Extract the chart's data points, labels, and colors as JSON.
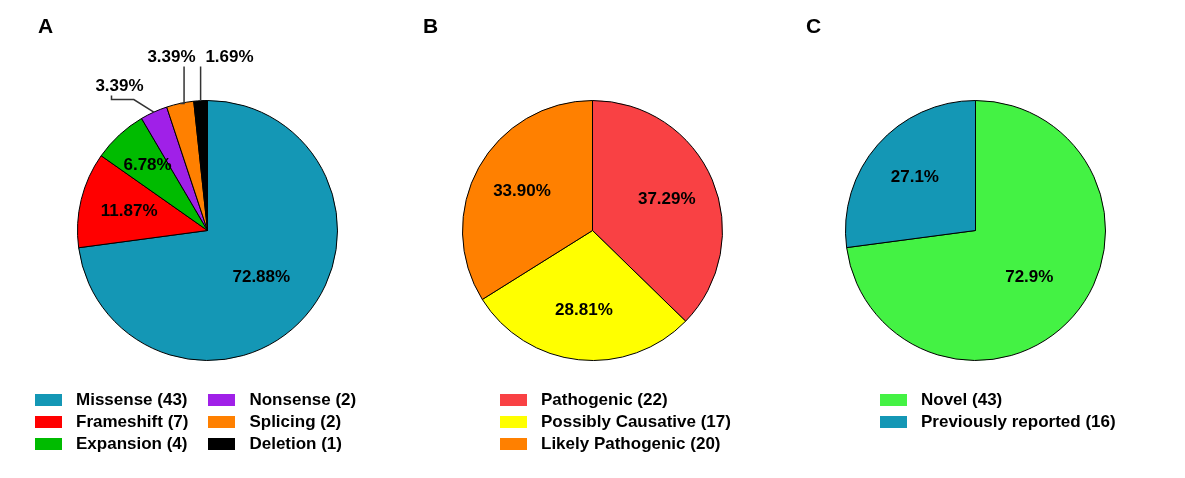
{
  "chart_data": [
    {
      "type": "pie",
      "title": "A",
      "categories": [
        "Missense (43)",
        "Frameshift (7)",
        "Expansion (4)",
        "Nonsense (2)",
        "Splicing (2)",
        "Deletion (1)"
      ],
      "values": [
        72.88,
        11.87,
        6.78,
        3.39,
        3.39,
        1.69
      ],
      "colors": [
        "#1497b5",
        "#ff0000",
        "#00bb00",
        "#a020e8",
        "#ff8000",
        "#000000"
      ],
      "value_labels": [
        "72.88%",
        "11.87%",
        "6.78%",
        "3.39%",
        "3.39%",
        "1.69%"
      ],
      "legend": "bottom"
    },
    {
      "type": "pie",
      "title": "B",
      "categories": [
        "Pathogenic (22)",
        "Possibly Causative (17)",
        "Likely Pathogenic (20)"
      ],
      "values": [
        37.29,
        28.81,
        33.9
      ],
      "colors": [
        "#f94144",
        "#ffff00",
        "#ff8000"
      ],
      "value_labels": [
        "37.29%",
        "28.81%",
        "33.90%"
      ],
      "legend": "bottom"
    },
    {
      "type": "pie",
      "title": "C",
      "categories": [
        "Novel (43)",
        "Previously reported (16)"
      ],
      "values": [
        72.9,
        27.1
      ],
      "colors": [
        "#44f244",
        "#1497b5"
      ],
      "value_labels": [
        "72.9%",
        "27.1%"
      ],
      "legend": "bottom"
    }
  ]
}
